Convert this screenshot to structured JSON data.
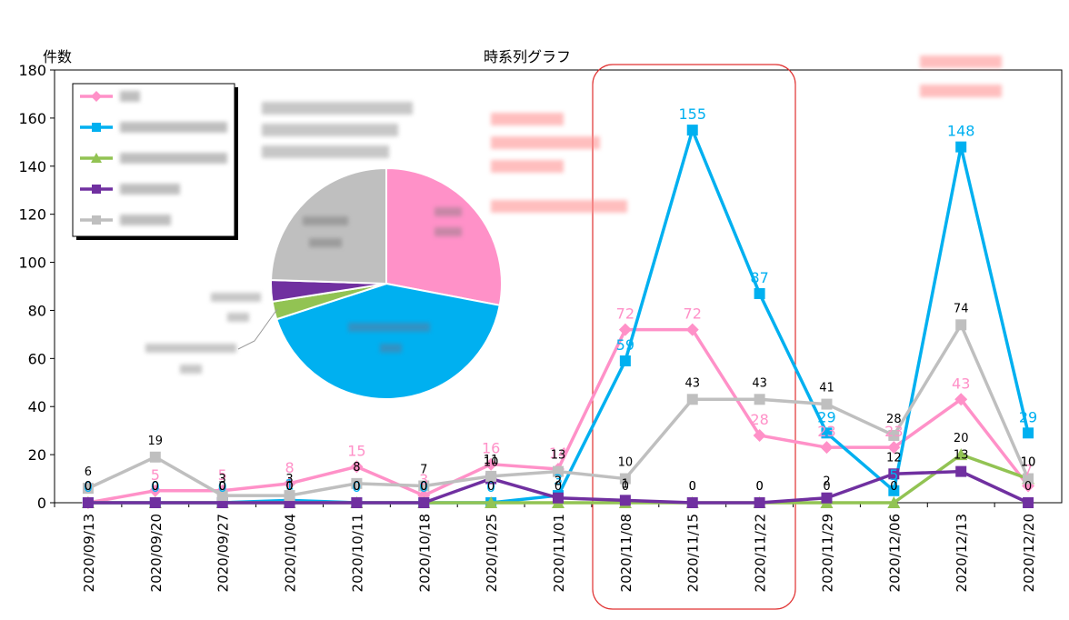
{
  "chart_data": {
    "type": "line",
    "title": "時系列グラフ",
    "ylabel": "件数",
    "xlabel": "",
    "ylim": [
      0,
      180
    ],
    "yticks": [
      0,
      20,
      40,
      60,
      80,
      100,
      120,
      140,
      160,
      180
    ],
    "grid": false,
    "legend": "top-left",
    "categories": [
      "2020/09/13",
      "2020/09/20",
      "2020/09/27",
      "2020/10/04",
      "2020/10/11",
      "2020/10/18",
      "2020/10/25",
      "2020/11/01",
      "2020/11/08",
      "2020/11/15",
      "2020/11/22",
      "2020/11/29",
      "2020/12/06",
      "2020/12/13",
      "2020/12/20"
    ],
    "series": [
      {
        "color": "#ff91c8",
        "marker": "diamond",
        "label_color": "#ff91c8",
        "values": [
          0,
          5,
          5,
          8,
          15,
          3,
          16,
          14,
          72,
          72,
          28,
          23,
          23,
          43,
          7
        ]
      },
      {
        "color": "#00b0f0",
        "marker": "square",
        "label_color": "#00b0f0",
        "values": [
          0,
          0,
          0,
          1,
          0,
          0,
          0,
          3,
          59,
          155,
          87,
          29,
          5,
          148,
          29
        ]
      },
      {
        "color": "#92c353",
        "marker": "triangle",
        "label_color": "#000000",
        "values": [
          0,
          0,
          0,
          0,
          0,
          0,
          0,
          0,
          0,
          0,
          0,
          0,
          0,
          20,
          10
        ]
      },
      {
        "color": "#7030a0",
        "marker": "square",
        "label_color": "#000000",
        "values": [
          0,
          0,
          0,
          0,
          0,
          0,
          10,
          2,
          1,
          0,
          0,
          2,
          12,
          13,
          0
        ]
      },
      {
        "color": "#bfbfbf",
        "marker": "square",
        "label_color": "#000000",
        "values": [
          6,
          19,
          3,
          3,
          8,
          7,
          11,
          13,
          10,
          43,
          43,
          41,
          28,
          74,
          10
        ]
      }
    ],
    "inset_pie": {
      "type": "pie",
      "slices": [
        {
          "color": "#ff91c8",
          "value": 28
        },
        {
          "color": "#00b0f0",
          "value": 42
        },
        {
          "color": "#92c353",
          "value": 2.5
        },
        {
          "color": "#7030a0",
          "value": 3
        },
        {
          "color": "#bfbfbf",
          "value": 24.5
        }
      ]
    }
  }
}
